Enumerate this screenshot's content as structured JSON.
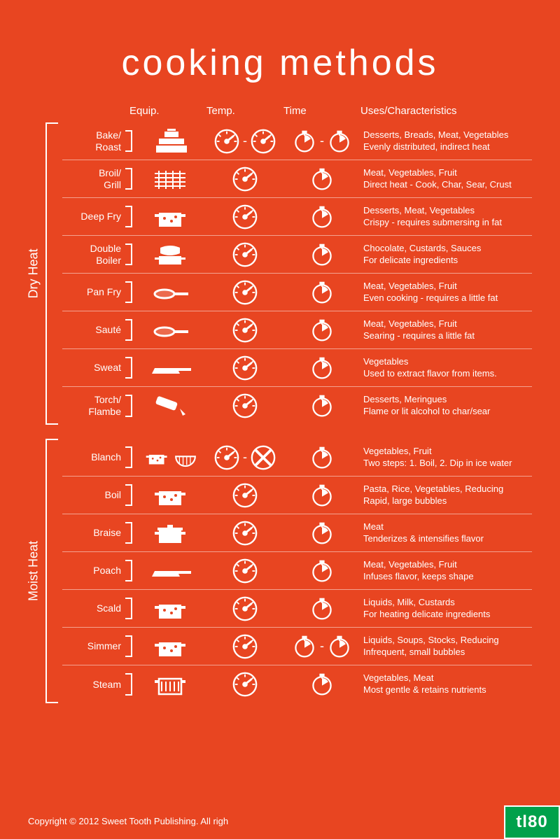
{
  "title": "cooking methods",
  "columns": {
    "equip": "Equip.",
    "temp": "Temp.",
    "time": "Time",
    "uses": "Uses/Characteristics"
  },
  "colors": {
    "bg": "#e84521",
    "fg": "#ffffff",
    "badge_bg": "#00a14b"
  },
  "sections": [
    {
      "label": "Dry Heat",
      "methods": [
        {
          "name": "Bake/\nRoast",
          "equip": [
            "oven"
          ],
          "temp": [
            "dial",
            "dial"
          ],
          "time": [
            "timer",
            "timer"
          ],
          "uses": "Desserts, Breads, Meat, Vegetables",
          "char": "Evenly distributed, indirect heat"
        },
        {
          "name": "Broil/\nGrill",
          "equip": [
            "grill"
          ],
          "temp": [
            "dial"
          ],
          "time": [
            "timer"
          ],
          "uses": "Meat, Vegetables, Fruit",
          "char": "Direct heat - Cook, Char, Sear, Crust"
        },
        {
          "name": "Deep Fry",
          "equip": [
            "pot"
          ],
          "temp": [
            "dial"
          ],
          "time": [
            "timer"
          ],
          "uses": "Desserts, Meat, Vegetables",
          "char": "Crispy - requires submersing in fat"
        },
        {
          "name": "Double\nBoiler",
          "equip": [
            "doubleboiler"
          ],
          "temp": [
            "dial"
          ],
          "time": [
            "timer"
          ],
          "uses": "Chocolate, Custards, Sauces",
          "char": "For delicate ingredients"
        },
        {
          "name": "Pan Fry",
          "equip": [
            "pan"
          ],
          "temp": [
            "dial"
          ],
          "time": [
            "timer"
          ],
          "uses": "Meat, Vegetables, Fruit",
          "char": "Even cooking - requires a little fat"
        },
        {
          "name": "Sauté",
          "equip": [
            "pan"
          ],
          "temp": [
            "dial"
          ],
          "time": [
            "timer"
          ],
          "uses": "Meat, Vegetables, Fruit",
          "char": "Searing - requires a little fat"
        },
        {
          "name": "Sweat",
          "equip": [
            "skillet"
          ],
          "temp": [
            "dial"
          ],
          "time": [
            "timer"
          ],
          "uses": "Vegetables",
          "char": "Used to extract flavor from items."
        },
        {
          "name": "Torch/\nFlambe",
          "equip": [
            "torch"
          ],
          "temp": [
            "dial"
          ],
          "time": [
            "timer"
          ],
          "uses": "Desserts, Meringues",
          "char": "Flame or lit alcohol to char/sear"
        }
      ]
    },
    {
      "label": "Moist Heat",
      "methods": [
        {
          "name": "Blanch",
          "equip": [
            "pot",
            "bowl"
          ],
          "temp": [
            "dial",
            "nodial"
          ],
          "time": [
            "timer"
          ],
          "uses": "Vegetables, Fruit",
          "char": "Two steps: 1. Boil, 2. Dip in ice water"
        },
        {
          "name": "Boil",
          "equip": [
            "pot"
          ],
          "temp": [
            "dial"
          ],
          "time": [
            "timer"
          ],
          "uses": "Pasta, Rice, Vegetables, Reducing",
          "char": "Rapid, large bubbles"
        },
        {
          "name": "Braise",
          "equip": [
            "dutchoven"
          ],
          "temp": [
            "dial"
          ],
          "time": [
            "timer"
          ],
          "uses": "Meat",
          "char": "Tenderizes & intensifies flavor"
        },
        {
          "name": "Poach",
          "equip": [
            "skillet"
          ],
          "temp": [
            "dial"
          ],
          "time": [
            "timer"
          ],
          "uses": "Meat, Vegetables, Fruit",
          "char": "Infuses flavor, keeps shape"
        },
        {
          "name": "Scald",
          "equip": [
            "pot"
          ],
          "temp": [
            "dial"
          ],
          "time": [
            "timer"
          ],
          "uses": "Liquids, Milk, Custards",
          "char": "For heating delicate ingredients"
        },
        {
          "name": "Simmer",
          "equip": [
            "pot"
          ],
          "temp": [
            "dial"
          ],
          "time": [
            "timer",
            "timer"
          ],
          "uses": "Liquids, Soups, Stocks, Reducing",
          "char": "Infrequent, small bubbles"
        },
        {
          "name": "Steam",
          "equip": [
            "steamer"
          ],
          "temp": [
            "dial"
          ],
          "time": [
            "timer"
          ],
          "uses": "Vegetables, Meat",
          "char": "Most gentle & retains nutrients"
        }
      ]
    }
  ],
  "footer": "Copyright © 2012 Sweet Tooth Publishing. All righ",
  "badge": "tl80"
}
